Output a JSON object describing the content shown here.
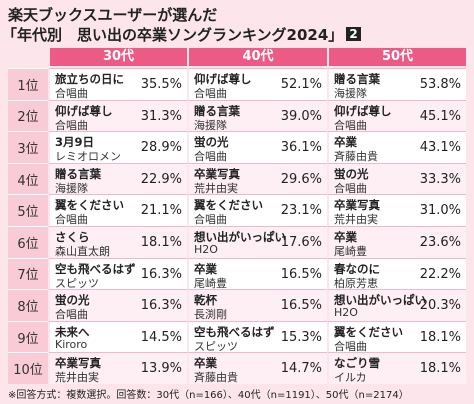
{
  "header": {
    "title_line1": "楽天ブックスユーザーが選んだ",
    "title_line2": "「年代別　思い出の卒業ソングランキング2024」",
    "badge": "2"
  },
  "table": {
    "columns": [
      "30代",
      "40代",
      "50代"
    ],
    "rows": [
      {
        "rank": "1位",
        "cells": [
          {
            "song": "旅立ちの日に",
            "artist": "合唱曲",
            "pct": "35.5%"
          },
          {
            "song": "仰げば尊し",
            "artist": "合唱曲",
            "pct": "52.1%"
          },
          {
            "song": "贈る言葉",
            "artist": "海援隊",
            "pct": "53.8%"
          }
        ]
      },
      {
        "rank": "2位",
        "cells": [
          {
            "song": "仰げば尊し",
            "artist": "合唱曲",
            "pct": "31.3%"
          },
          {
            "song": "贈る言葉",
            "artist": "海援隊",
            "pct": "39.0%"
          },
          {
            "song": "仰げば尊し",
            "artist": "合唱曲",
            "pct": "45.1%"
          }
        ]
      },
      {
        "rank": "3位",
        "cells": [
          {
            "song": "3月9日",
            "artist": "レミオロメン",
            "pct": "28.9%"
          },
          {
            "song": "蛍の光",
            "artist": "合唱曲",
            "pct": "36.1%"
          },
          {
            "song": "卒業",
            "artist": "斉藤由貴",
            "pct": "43.1%"
          }
        ]
      },
      {
        "rank": "4位",
        "cells": [
          {
            "song": "贈る言葉",
            "artist": "海援隊",
            "pct": "22.9%"
          },
          {
            "song": "卒業写真",
            "artist": "荒井由実",
            "pct": "29.6%"
          },
          {
            "song": "蛍の光",
            "artist": "合唱曲",
            "pct": "33.3%"
          }
        ]
      },
      {
        "rank": "5位",
        "cells": [
          {
            "song": "翼をください",
            "artist": "合唱曲",
            "pct": "21.1%"
          },
          {
            "song": "翼をください",
            "artist": "合唱曲",
            "pct": "23.1%"
          },
          {
            "song": "卒業写真",
            "artist": "荒井由実",
            "pct": "31.0%"
          }
        ]
      },
      {
        "rank": "6位",
        "cells": [
          {
            "song": "さくら",
            "artist": "森山直太朗",
            "pct": "18.1%"
          },
          {
            "song": "想い出がいっぱい",
            "artist": "H2O",
            "pct": "17.6%"
          },
          {
            "song": "卒業",
            "artist": "尾崎豊",
            "pct": "23.6%"
          }
        ]
      },
      {
        "rank": "7位",
        "cells": [
          {
            "song": "空も飛べるはず",
            "artist": "スピッツ",
            "pct": "16.3%"
          },
          {
            "song": "卒業",
            "artist": "尾崎豊",
            "pct": "16.5%"
          },
          {
            "song": "春なのに",
            "artist": "柏原芳恵",
            "pct": "22.2%"
          }
        ]
      },
      {
        "rank": "8位",
        "cells": [
          {
            "song": "蛍の光",
            "artist": "合唱曲",
            "pct": "16.3%"
          },
          {
            "song": "乾杯",
            "artist": "長渕剛",
            "pct": "16.5%"
          },
          {
            "song": "想い出がいっぱい",
            "artist": "H2O",
            "pct": "20.3%"
          }
        ]
      },
      {
        "rank": "9位",
        "cells": [
          {
            "song": "未来へ",
            "artist": "Kiroro",
            "pct": "14.5%"
          },
          {
            "song": "空も飛べるはず",
            "artist": "スピッツ",
            "pct": "15.3%"
          },
          {
            "song": "翼をください",
            "artist": "合唱曲",
            "pct": "18.1%"
          }
        ]
      },
      {
        "rank": "10位",
        "cells": [
          {
            "song": "卒業写真",
            "artist": "荒井由実",
            "pct": "13.9%"
          },
          {
            "song": "卒業",
            "artist": "斉藤由貴",
            "pct": "14.7%"
          },
          {
            "song": "なごり雪",
            "artist": "イルカ",
            "pct": "18.1%"
          }
        ]
      }
    ]
  },
  "footnote": "※回答方式：複数選択。回答数：30代（n=166）、40代（n=1191）、50代（n=2174）"
}
